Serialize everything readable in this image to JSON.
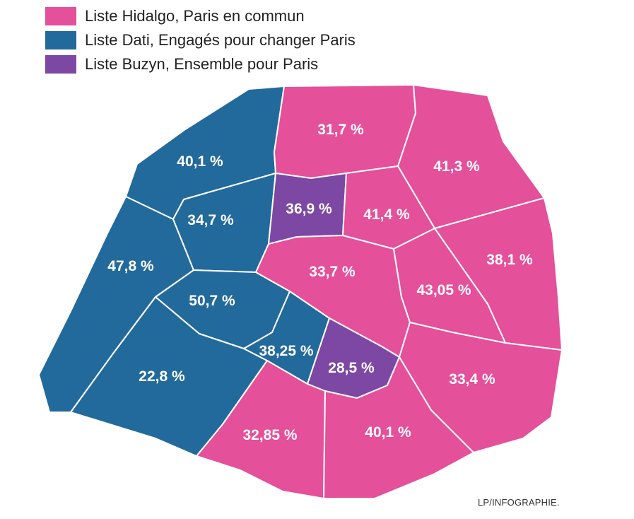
{
  "legend": [
    {
      "label": "Liste Hidalgo, Paris en commun",
      "color": "#e4509a"
    },
    {
      "label": "Liste Dati, Engagés pour changer Paris",
      "color": "#236a9c"
    },
    {
      "label": "Liste Buzyn, Ensemble pour Paris",
      "color": "#7d48a3"
    }
  ],
  "districts": [
    {
      "id": "nw-outer",
      "list": "dati",
      "value": "40,1 %"
    },
    {
      "id": "west",
      "list": "dati",
      "value": "47,8 %"
    },
    {
      "id": "inner-nw",
      "list": "dati",
      "value": "34,7 %"
    },
    {
      "id": "center-west",
      "list": "dati",
      "value": "50,7 %"
    },
    {
      "id": "southwest",
      "list": "dati",
      "value": "22,8 %"
    },
    {
      "id": "center-left",
      "list": "dati",
      "value": "38,25 %"
    },
    {
      "id": "north",
      "list": "hidalgo",
      "value": "31,7 %"
    },
    {
      "id": "northeast",
      "list": "hidalgo",
      "value": "41,3 %"
    },
    {
      "id": "inner-north",
      "list": "buzyn",
      "value": "36,9 %"
    },
    {
      "id": "inner-northeast",
      "list": "hidalgo",
      "value": "41,4 %"
    },
    {
      "id": "east",
      "list": "hidalgo",
      "value": "38,1 %"
    },
    {
      "id": "center",
      "list": "hidalgo",
      "value": "33,7 %"
    },
    {
      "id": "center-east",
      "list": "hidalgo",
      "value": "43,05 %"
    },
    {
      "id": "south-center",
      "list": "buzyn",
      "value": "28,5 %"
    },
    {
      "id": "southeast",
      "list": "hidalgo",
      "value": "33,4 %"
    },
    {
      "id": "south",
      "list": "hidalgo",
      "value": "32,85 %"
    },
    {
      "id": "south-2",
      "list": "hidalgo",
      "value": "40,1 %"
    }
  ],
  "credit": "LP/INFOGRAPHIE."
}
